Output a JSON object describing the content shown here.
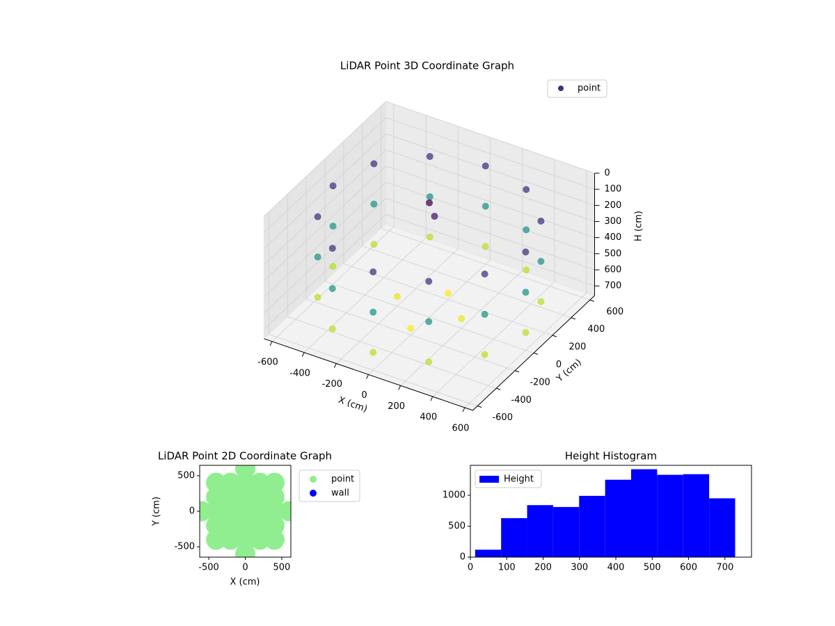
{
  "chart_data": [
    {
      "type": "scatter3d",
      "title": "LiDAR Point 3D Coordinate Graph",
      "xlabel": "X (cm)",
      "ylabel": "Y (cm)",
      "zlabel": "H (cm)",
      "xlim": [
        -650,
        650
      ],
      "ylim": [
        -650,
        650
      ],
      "zlim": [
        0,
        760
      ],
      "z_inverted": true,
      "xticks": [
        -600,
        -400,
        -200,
        0,
        200,
        400,
        600
      ],
      "yticks": [
        -600,
        -400,
        -200,
        0,
        200,
        400,
        600
      ],
      "zticks": [
        0,
        100,
        200,
        300,
        400,
        500,
        600,
        700
      ],
      "colormap": "viridis",
      "legend": "upper right",
      "grid": true,
      "series": [
        {
          "name": "point",
          "color": "#472d7b",
          "x": [
            600,
            520,
            300,
            0,
            -300,
            -520,
            -600,
            -520,
            -300,
            0,
            300,
            520,
            600,
            520,
            300,
            0,
            -300,
            -520,
            -600,
            -520,
            -300,
            0,
            300,
            520,
            600,
            520,
            300,
            0,
            -300,
            -520,
            -600,
            -520,
            -300,
            0,
            300,
            520,
            0,
            50,
            200,
            -200,
            0,
            0
          ],
          "y": [
            0,
            300,
            520,
            600,
            520,
            300,
            0,
            -300,
            -520,
            -600,
            -520,
            -300,
            0,
            300,
            520,
            600,
            520,
            300,
            0,
            -300,
            -520,
            -600,
            -520,
            -300,
            0,
            300,
            520,
            600,
            520,
            300,
            0,
            -300,
            -520,
            -600,
            -520,
            -300,
            0,
            -30,
            0,
            0,
            200,
            -200
          ],
          "z": [
            150,
            150,
            150,
            150,
            150,
            150,
            150,
            150,
            150,
            150,
            150,
            150,
            400,
            400,
            400,
            400,
            400,
            400,
            400,
            400,
            400,
            400,
            400,
            400,
            650,
            650,
            650,
            650,
            650,
            650,
            650,
            650,
            650,
            650,
            650,
            650,
            50,
            100,
            700,
            700,
            720,
            720
          ]
        }
      ]
    },
    {
      "type": "scatter",
      "title": "LiDAR Point 2D Coordinate Graph",
      "xlabel": "X (cm)",
      "ylabel": "Y (cm)",
      "xlim": [
        -625,
        625
      ],
      "ylim": [
        -645,
        645
      ],
      "xticks": [
        -500,
        0,
        500
      ],
      "yticks": [
        -500,
        0,
        500
      ],
      "legend": "outside right",
      "series": [
        {
          "name": "point",
          "color": "#90ee90",
          "x": [
            -600,
            -400,
            -400,
            -400,
            -400,
            -400,
            -200,
            -200,
            -200,
            -200,
            -200,
            0,
            0,
            0,
            0,
            0,
            0,
            0,
            200,
            200,
            200,
            200,
            200,
            400,
            400,
            400,
            400,
            400,
            600
          ],
          "y": [
            0,
            -400,
            -200,
            0,
            200,
            400,
            -400,
            -200,
            0,
            200,
            400,
            -600,
            -400,
            -200,
            0,
            200,
            400,
            600,
            -400,
            -200,
            0,
            200,
            400,
            -400,
            -200,
            0,
            200,
            400,
            0
          ]
        },
        {
          "name": "wall",
          "color": "#0000ff",
          "x": [],
          "y": []
        }
      ]
    },
    {
      "type": "histogram",
      "title": "Height Histogram",
      "bins": [
        13,
        84.5,
        156,
        227.5,
        299,
        370.5,
        442,
        513.5,
        585,
        656.5,
        728
      ],
      "counts": [
        120,
        630,
        840,
        810,
        990,
        1250,
        1420,
        1330,
        1340,
        950
      ],
      "series_name": "Height",
      "color": "#0000ff",
      "xlim": [
        0,
        773
      ],
      "ylim": [
        0,
        1483
      ],
      "xticks": [
        0,
        100,
        200,
        300,
        400,
        500,
        600,
        700
      ],
      "yticks": [
        0,
        500,
        1000
      ],
      "legend": "upper left"
    }
  ]
}
